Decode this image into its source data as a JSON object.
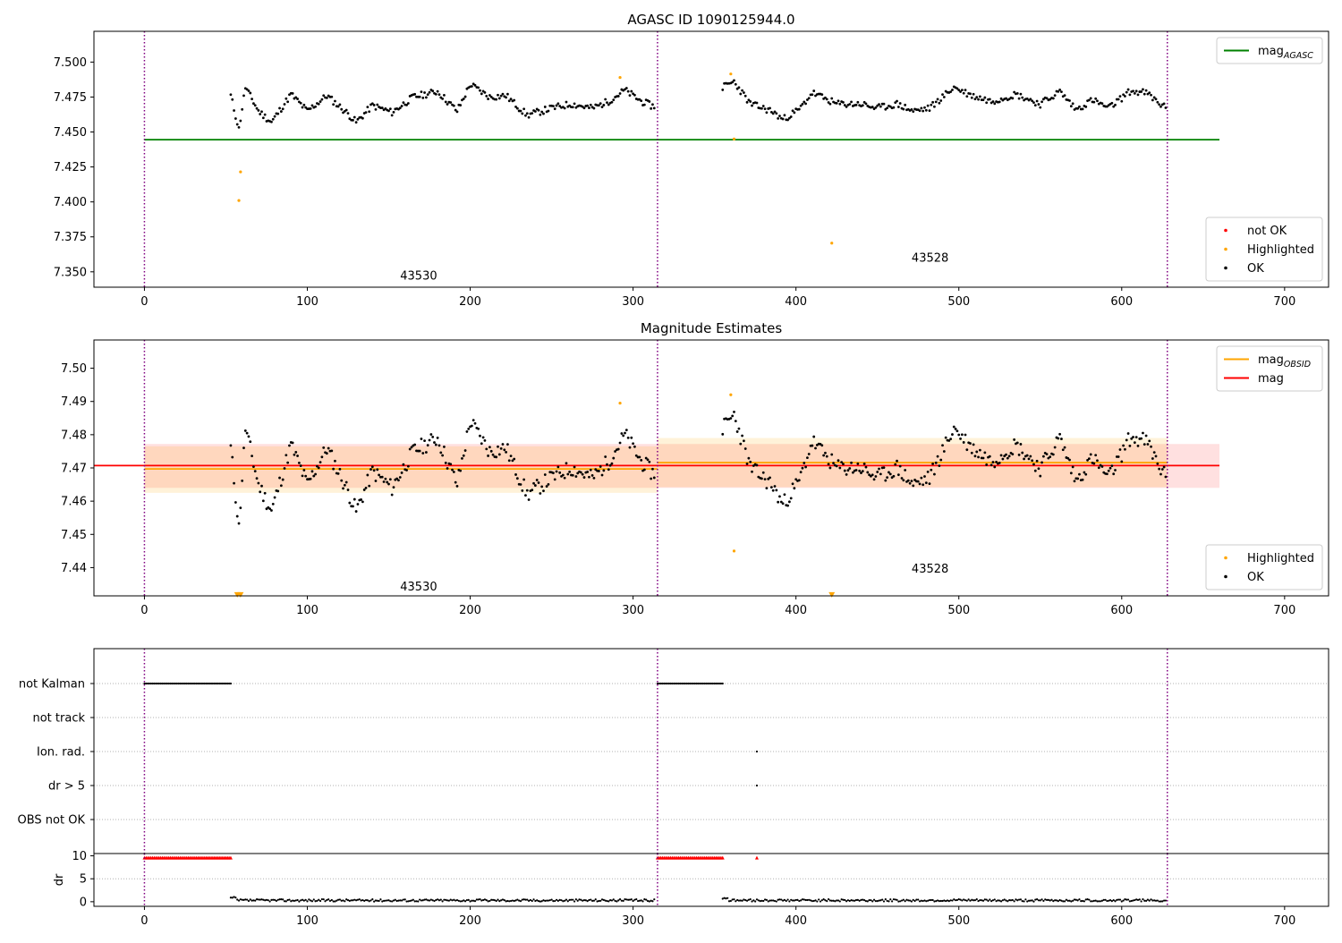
{
  "figure_title": "AGASC ID 1090125944.0",
  "chart_data": [
    {
      "id": "agasc",
      "type": "scatter",
      "title": "AGASC ID 1090125944.0",
      "xlim": [
        -31,
        727
      ],
      "ylim": [
        7.339,
        7.522
      ],
      "xticks": [
        0,
        100,
        200,
        300,
        400,
        500,
        600,
        700
      ],
      "yticks": [
        7.35,
        7.375,
        7.4,
        7.425,
        7.45,
        7.475,
        7.5
      ],
      "ytick_labels": [
        "7.350",
        "7.375",
        "7.400",
        "7.425",
        "7.450",
        "7.475",
        "7.500"
      ],
      "obsid_boundaries": [
        0,
        315,
        628
      ],
      "obsid_labels": [
        {
          "text": "43530",
          "x": 157,
          "y": 7.3475
        },
        {
          "text": "43528",
          "x": 471,
          "y": 7.3605
        }
      ],
      "lines": [
        {
          "name": "mag",
          "sub": "AGASC",
          "x": [
            0,
            660
          ],
          "y": [
            7.4445,
            7.4445
          ],
          "color": "#008000"
        }
      ],
      "highlighted": [
        {
          "x": 58,
          "y": 7.401
        },
        {
          "x": 59,
          "y": 7.4215
        },
        {
          "x": 292,
          "y": 7.489
        },
        {
          "x": 360,
          "y": 7.4915
        },
        {
          "x": 362,
          "y": 7.445
        },
        {
          "x": 422,
          "y": 7.3705
        }
      ],
      "segments": [
        {
          "x0": 53,
          "x1": 313,
          "nodes": [
            [
              53,
              7.476
            ],
            [
              58,
              7.452
            ],
            [
              62,
              7.482
            ],
            [
              70,
              7.465
            ],
            [
              78,
              7.457
            ],
            [
              90,
              7.477
            ],
            [
              100,
              7.465
            ],
            [
              112,
              7.476
            ],
            [
              125,
              7.463
            ],
            [
              130,
              7.457
            ],
            [
              140,
              7.469
            ],
            [
              152,
              7.464
            ],
            [
              165,
              7.475
            ],
            [
              180,
              7.479
            ],
            [
              192,
              7.465
            ],
            [
              200,
              7.484
            ],
            [
              212,
              7.475
            ],
            [
              222,
              7.476
            ],
            [
              235,
              7.462
            ],
            [
              250,
              7.467
            ],
            [
              262,
              7.47
            ],
            [
              275,
              7.467
            ],
            [
              285,
              7.472
            ],
            [
              295,
              7.48
            ],
            [
              305,
              7.472
            ],
            [
              313,
              7.468
            ]
          ],
          "seed": 11,
          "noise": 0.0025
        },
        {
          "x0": 355,
          "x1": 627,
          "nodes": [
            [
              355,
              7.482
            ],
            [
              362,
              7.486
            ],
            [
              372,
              7.47
            ],
            [
              385,
              7.465
            ],
            [
              392,
              7.459
            ],
            [
              402,
              7.466
            ],
            [
              410,
              7.478
            ],
            [
              425,
              7.47
            ],
            [
              440,
              7.47
            ],
            [
              450,
              7.467
            ],
            [
              462,
              7.47
            ],
            [
              472,
              7.465
            ],
            [
              482,
              7.467
            ],
            [
              497,
              7.482
            ],
            [
              508,
              7.476
            ],
            [
              520,
              7.472
            ],
            [
              535,
              7.477
            ],
            [
              550,
              7.47
            ],
            [
              562,
              7.479
            ],
            [
              572,
              7.466
            ],
            [
              582,
              7.473
            ],
            [
              592,
              7.467
            ],
            [
              605,
              7.479
            ],
            [
              615,
              7.478
            ],
            [
              627,
              7.467
            ]
          ],
          "seed": 23,
          "noise": 0.0025
        }
      ],
      "legend": {
        "upper": [
          {
            "label": "mag",
            "sub": "AGASC",
            "color": "#008000"
          }
        ],
        "lower": [
          {
            "label": "not OK",
            "color": "#ff0000"
          },
          {
            "label": "Highlighted",
            "color": "#ffa500"
          },
          {
            "label": "OK",
            "color": "#000000"
          }
        ]
      }
    },
    {
      "id": "estimates",
      "type": "scatter",
      "title": "Magnitude Estimates",
      "xlim": [
        -31,
        727
      ],
      "ylim": [
        7.4315,
        7.5085
      ],
      "xticks": [
        0,
        100,
        200,
        300,
        400,
        500,
        600,
        700
      ],
      "yticks": [
        7.44,
        7.45,
        7.46,
        7.47,
        7.48,
        7.49,
        7.5
      ],
      "ytick_labels": [
        "7.44",
        "7.45",
        "7.46",
        "7.47",
        "7.48",
        "7.49",
        "7.50"
      ],
      "obsid_boundaries": [
        0,
        315,
        628
      ],
      "obsid_labels": [
        {
          "text": "43530",
          "x": 157,
          "y": 7.4345
        },
        {
          "text": "43528",
          "x": 471,
          "y": 7.4398
        }
      ],
      "bands": [
        {
          "x": [
            0,
            660
          ],
          "y": [
            7.464,
            7.4772
          ],
          "color": "#ff0000",
          "opacity": 0.12
        },
        {
          "x": [
            0,
            315
          ],
          "y": [
            7.4625,
            7.4765
          ],
          "color": "#ffa500",
          "opacity": 0.15
        },
        {
          "x": [
            315,
            628
          ],
          "y": [
            7.4642,
            7.479
          ],
          "color": "#ffa500",
          "opacity": 0.15
        }
      ],
      "lines": [
        {
          "name": "mag",
          "sub": "OBSID",
          "x": [
            0,
            315
          ],
          "y": [
            7.4697,
            7.4697
          ],
          "color": "#ffa500"
        },
        {
          "name": "mag",
          "sub": "OBSID",
          "x": [
            315,
            628
          ],
          "y": [
            7.4716,
            7.4716
          ],
          "color": "#ffa500"
        },
        {
          "name": "mag",
          "sub": "",
          "x": [
            -31,
            660
          ],
          "y": [
            7.4707,
            7.4707
          ],
          "color": "#ff0000"
        }
      ],
      "highlighted": [
        {
          "x": 292,
          "y": 7.4895
        },
        {
          "x": 360,
          "y": 7.492
        },
        {
          "x": 362,
          "y": 7.445
        }
      ],
      "offscale_markers": [
        {
          "x": 57,
          "y": 7.4318
        },
        {
          "x": 59,
          "y": 7.4318
        },
        {
          "x": 422,
          "y": 7.4318
        }
      ],
      "segments": [
        {
          "x0": 53,
          "x1": 313,
          "nodes": [
            [
              53,
              7.476
            ],
            [
              58,
              7.452
            ],
            [
              62,
              7.482
            ],
            [
              70,
              7.465
            ],
            [
              78,
              7.457
            ],
            [
              90,
              7.477
            ],
            [
              100,
              7.465
            ],
            [
              112,
              7.476
            ],
            [
              125,
              7.463
            ],
            [
              130,
              7.457
            ],
            [
              140,
              7.469
            ],
            [
              152,
              7.464
            ],
            [
              165,
              7.475
            ],
            [
              180,
              7.479
            ],
            [
              192,
              7.465
            ],
            [
              200,
              7.484
            ],
            [
              212,
              7.475
            ],
            [
              222,
              7.476
            ],
            [
              235,
              7.462
            ],
            [
              250,
              7.467
            ],
            [
              262,
              7.47
            ],
            [
              275,
              7.467
            ],
            [
              285,
              7.472
            ],
            [
              295,
              7.48
            ],
            [
              305,
              7.472
            ],
            [
              313,
              7.468
            ]
          ],
          "seed": 11,
          "noise": 0.0025
        },
        {
          "x0": 355,
          "x1": 627,
          "nodes": [
            [
              355,
              7.482
            ],
            [
              362,
              7.486
            ],
            [
              372,
              7.47
            ],
            [
              385,
              7.465
            ],
            [
              392,
              7.459
            ],
            [
              402,
              7.466
            ],
            [
              410,
              7.478
            ],
            [
              425,
              7.47
            ],
            [
              440,
              7.47
            ],
            [
              450,
              7.467
            ],
            [
              462,
              7.47
            ],
            [
              472,
              7.465
            ],
            [
              482,
              7.467
            ],
            [
              497,
              7.482
            ],
            [
              508,
              7.476
            ],
            [
              520,
              7.472
            ],
            [
              535,
              7.477
            ],
            [
              550,
              7.47
            ],
            [
              562,
              7.479
            ],
            [
              572,
              7.466
            ],
            [
              582,
              7.473
            ],
            [
              592,
              7.467
            ],
            [
              605,
              7.479
            ],
            [
              615,
              7.478
            ],
            [
              627,
              7.467
            ]
          ],
          "seed": 23,
          "noise": 0.0025
        }
      ],
      "legend": {
        "upper": [
          {
            "label": "mag",
            "sub": "OBSID",
            "color": "#ffa500"
          },
          {
            "label": "mag",
            "sub": "",
            "color": "#ff0000"
          }
        ],
        "lower": [
          {
            "label": "Highlighted",
            "color": "#ffa500"
          },
          {
            "label": "OK",
            "color": "#000000"
          }
        ]
      }
    },
    {
      "id": "flags",
      "type": "scatter",
      "xlim": [
        -31,
        727
      ],
      "categories": [
        "not Kalman",
        "not track",
        "Ion. rad.",
        "dr > 5",
        "OBS not OK"
      ],
      "obsid_boundaries": [
        0,
        315,
        628
      ],
      "flag_runs": [
        {
          "category": "not Kalman",
          "x0": 0,
          "x1": 53
        },
        {
          "category": "not Kalman",
          "x0": 315,
          "x1": 355
        }
      ],
      "flag_points": [
        {
          "category": "Ion. rad.",
          "x": 376
        },
        {
          "category": "dr > 5",
          "x": 376
        }
      ]
    },
    {
      "id": "dr",
      "type": "scatter",
      "xlim": [
        -31,
        727
      ],
      "ylim": [
        -1,
        10.5
      ],
      "ylabel": "dr",
      "yticks": [
        0,
        5,
        10
      ],
      "ytick_labels": [
        "0",
        "5",
        "10"
      ],
      "xticks": [
        0,
        100,
        200,
        300,
        400,
        500,
        600,
        700
      ],
      "obsid_boundaries": [
        0,
        315,
        628
      ],
      "clipped_runs": [
        {
          "x0": 0,
          "x1": 53,
          "y": 9.6,
          "color": "#ff0000"
        },
        {
          "x0": 315,
          "x1": 355,
          "y": 9.6,
          "color": "#ff0000"
        }
      ],
      "clipped_points": [
        {
          "x": 376,
          "y": 9.6,
          "color": "#ff0000"
        }
      ],
      "low_segments": [
        {
          "x0": 53,
          "x1": 313,
          "base": 0.3
        },
        {
          "x0": 355,
          "x1": 627,
          "base": 0.3
        }
      ]
    }
  ]
}
